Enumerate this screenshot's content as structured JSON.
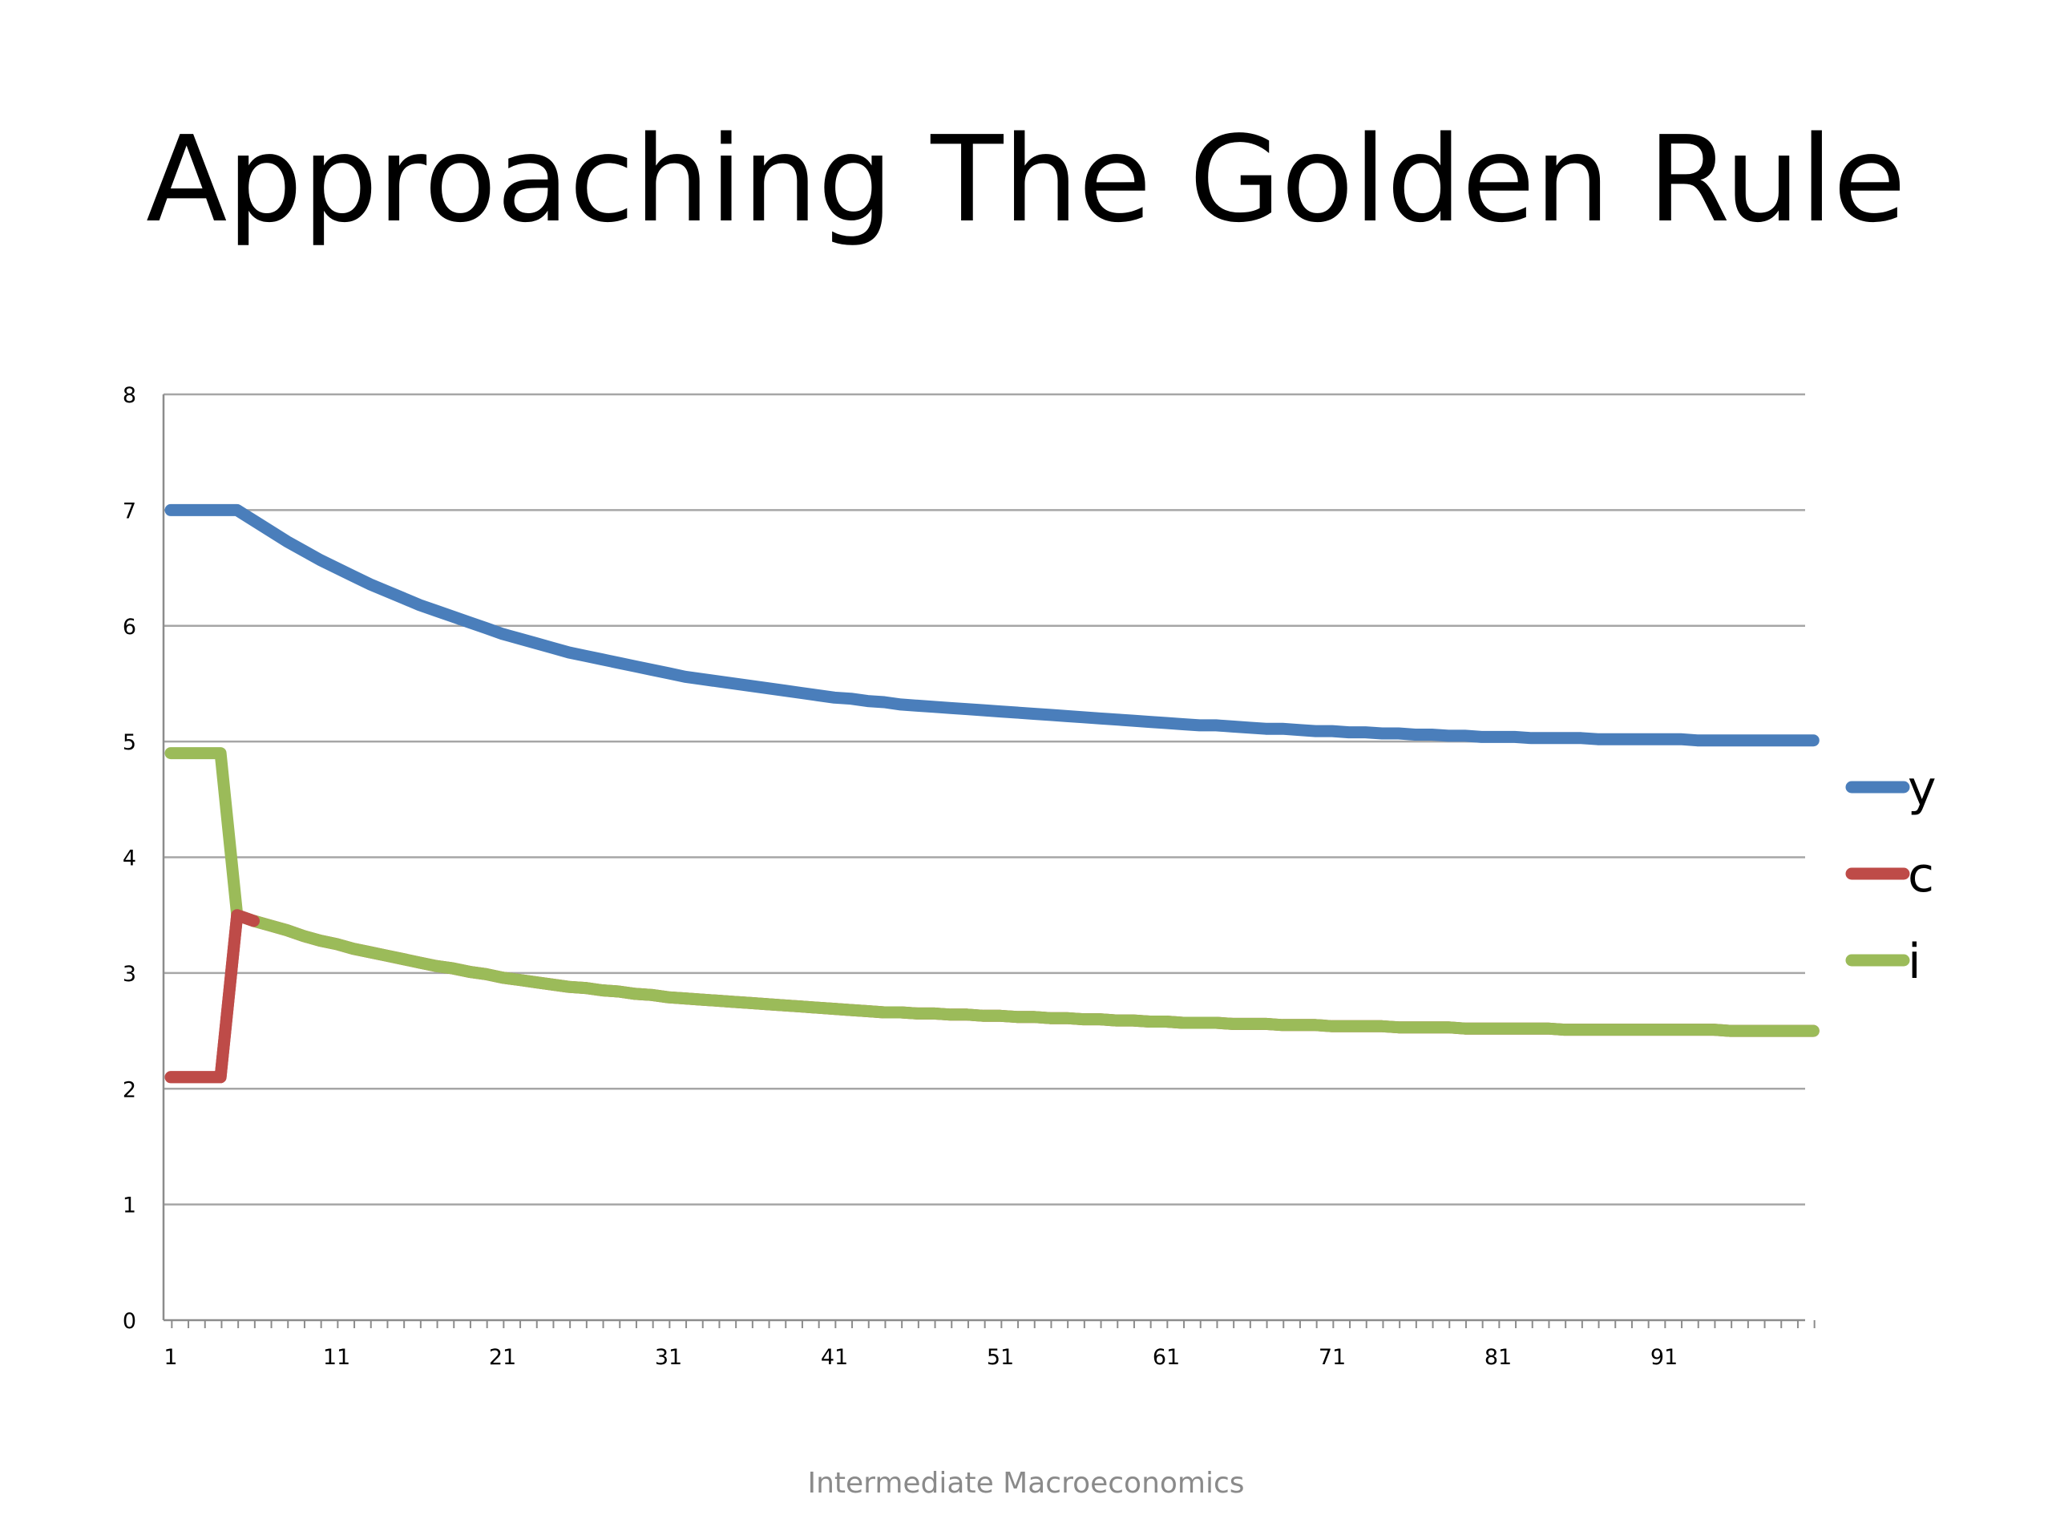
{
  "slide": {
    "title": "Approaching The Golden Rule",
    "footer": "Intermediate Macroeconomics"
  },
  "chart_data": {
    "type": "line",
    "title": "",
    "xlabel": "",
    "ylabel": "",
    "xlim": [
      1,
      100
    ],
    "ylim": [
      0,
      8
    ],
    "x_ticks": [
      1,
      11,
      21,
      31,
      41,
      51,
      61,
      71,
      81,
      91
    ],
    "y_ticks": [
      0,
      1,
      2,
      3,
      4,
      5,
      6,
      7,
      8
    ],
    "grid": "horizontal",
    "legend_position": "right",
    "x": [
      1,
      2,
      3,
      4,
      5,
      6,
      7,
      8,
      9,
      10,
      11,
      12,
      13,
      14,
      15,
      16,
      17,
      18,
      19,
      20,
      21,
      22,
      23,
      24,
      25,
      26,
      27,
      28,
      29,
      30,
      31,
      32,
      33,
      34,
      35,
      36,
      37,
      38,
      39,
      40,
      41,
      42,
      43,
      44,
      45,
      46,
      47,
      48,
      49,
      50,
      51,
      52,
      53,
      54,
      55,
      56,
      57,
      58,
      59,
      60,
      61,
      62,
      63,
      64,
      65,
      66,
      67,
      68,
      69,
      70,
      71,
      72,
      73,
      74,
      75,
      76,
      77,
      78,
      79,
      80,
      81,
      82,
      83,
      84,
      85,
      86,
      87,
      88,
      89,
      90,
      91,
      92,
      93,
      94,
      95,
      96,
      97,
      98,
      99,
      100
    ],
    "series": [
      {
        "name": "y",
        "color": "#4a7ebb",
        "values": [
          7.0,
          7.0,
          7.0,
          7.0,
          7.0,
          6.91,
          6.82,
          6.73,
          6.65,
          6.57,
          6.5,
          6.43,
          6.36,
          6.3,
          6.24,
          6.18,
          6.13,
          6.08,
          6.03,
          5.98,
          5.93,
          5.89,
          5.85,
          5.81,
          5.77,
          5.74,
          5.71,
          5.68,
          5.65,
          5.62,
          5.59,
          5.56,
          5.54,
          5.52,
          5.5,
          5.48,
          5.46,
          5.44,
          5.42,
          5.4,
          5.38,
          5.37,
          5.35,
          5.34,
          5.32,
          5.31,
          5.3,
          5.29,
          5.28,
          5.27,
          5.26,
          5.25,
          5.24,
          5.23,
          5.22,
          5.21,
          5.2,
          5.19,
          5.18,
          5.17,
          5.16,
          5.15,
          5.14,
          5.14,
          5.13,
          5.12,
          5.11,
          5.11,
          5.1,
          5.09,
          5.09,
          5.08,
          5.08,
          5.07,
          5.07,
          5.06,
          5.06,
          5.05,
          5.05,
          5.04,
          5.04,
          5.04,
          5.03,
          5.03,
          5.03,
          5.03,
          5.02,
          5.02,
          5.02,
          5.02,
          5.02,
          5.02,
          5.01,
          5.01,
          5.01,
          5.01,
          5.01,
          5.01,
          5.01,
          5.01
        ]
      },
      {
        "name": "c",
        "color": "#be4b48",
        "values": [
          2.1,
          2.1,
          2.1,
          2.1,
          3.5,
          3.45,
          3.41,
          3.37,
          3.32,
          3.28,
          3.25,
          3.21,
          3.18,
          3.15,
          3.12,
          3.09,
          3.06,
          3.04,
          3.01,
          2.99,
          2.96,
          2.94,
          2.92,
          2.9,
          2.88,
          2.87,
          2.85,
          2.84,
          2.82,
          2.81,
          2.79,
          2.78,
          2.77,
          2.76,
          2.75,
          2.74,
          2.73,
          2.72,
          2.71,
          2.7,
          2.69,
          2.68,
          2.67,
          2.66,
          2.66,
          2.65,
          2.65,
          2.64,
          2.64,
          2.63,
          2.63,
          2.62,
          2.62,
          2.61,
          2.61,
          2.6,
          2.6,
          2.59,
          2.59,
          2.58,
          2.58,
          2.57,
          2.57,
          2.57,
          2.56,
          2.56,
          2.56,
          2.55,
          2.55,
          2.55,
          2.54,
          2.54,
          2.54,
          2.54,
          2.53,
          2.53,
          2.53,
          2.53,
          2.52,
          2.52,
          2.52,
          2.52,
          2.52,
          2.52,
          2.51,
          2.51,
          2.51,
          2.51,
          2.51,
          2.51,
          2.51,
          2.51,
          2.51,
          2.51,
          2.5,
          2.5,
          2.5,
          2.5,
          2.5,
          2.5
        ]
      },
      {
        "name": "i",
        "color": "#9bbb59",
        "values": [
          4.9,
          4.9,
          4.9,
          4.9,
          3.5,
          3.45,
          3.41,
          3.37,
          3.32,
          3.28,
          3.25,
          3.21,
          3.18,
          3.15,
          3.12,
          3.09,
          3.06,
          3.04,
          3.01,
          2.99,
          2.96,
          2.94,
          2.92,
          2.9,
          2.88,
          2.87,
          2.85,
          2.84,
          2.82,
          2.81,
          2.79,
          2.78,
          2.77,
          2.76,
          2.75,
          2.74,
          2.73,
          2.72,
          2.71,
          2.7,
          2.69,
          2.68,
          2.67,
          2.66,
          2.66,
          2.65,
          2.65,
          2.64,
          2.64,
          2.63,
          2.63,
          2.62,
          2.62,
          2.61,
          2.61,
          2.6,
          2.6,
          2.59,
          2.59,
          2.58,
          2.58,
          2.57,
          2.57,
          2.57,
          2.56,
          2.56,
          2.56,
          2.55,
          2.55,
          2.55,
          2.54,
          2.54,
          2.54,
          2.54,
          2.53,
          2.53,
          2.53,
          2.53,
          2.52,
          2.52,
          2.52,
          2.52,
          2.52,
          2.52,
          2.51,
          2.51,
          2.51,
          2.51,
          2.51,
          2.51,
          2.51,
          2.51,
          2.51,
          2.51,
          2.5,
          2.5,
          2.5,
          2.5,
          2.5,
          2.5
        ]
      }
    ]
  }
}
